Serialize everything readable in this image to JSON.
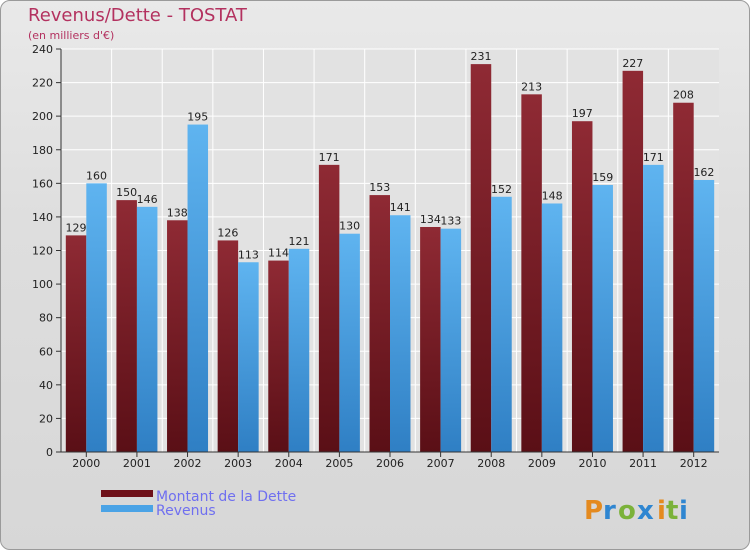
{
  "title": "Revenus/Dette - TOSTAT",
  "subtitle": "(en milliers d'€)",
  "logo": "Proxiti",
  "colors": {
    "dette": "#7a1c24",
    "revenus": "#4aa3e6",
    "title": "#b3315f"
  },
  "chart_data": {
    "type": "bar",
    "title": "Revenus/Dette - TOSTAT",
    "ylabel": "(en milliers d'€)",
    "categories": [
      "2000",
      "2001",
      "2002",
      "2003",
      "2004",
      "2005",
      "2006",
      "2007",
      "2008",
      "2009",
      "2010",
      "2011",
      "2012"
    ],
    "series": [
      {
        "name": "Montant de la Dette",
        "values": [
          129,
          150,
          138,
          126,
          114,
          171,
          153,
          134,
          231,
          213,
          197,
          227,
          208
        ]
      },
      {
        "name": "Revenus",
        "values": [
          160,
          146,
          195,
          113,
          121,
          130,
          141,
          133,
          152,
          148,
          159,
          171,
          162
        ]
      }
    ],
    "ylim": [
      0,
      240
    ],
    "yticks": [
      0,
      20,
      40,
      60,
      80,
      100,
      120,
      140,
      160,
      180,
      200,
      220,
      240
    ],
    "grid": true,
    "legend": "bottom-left"
  }
}
